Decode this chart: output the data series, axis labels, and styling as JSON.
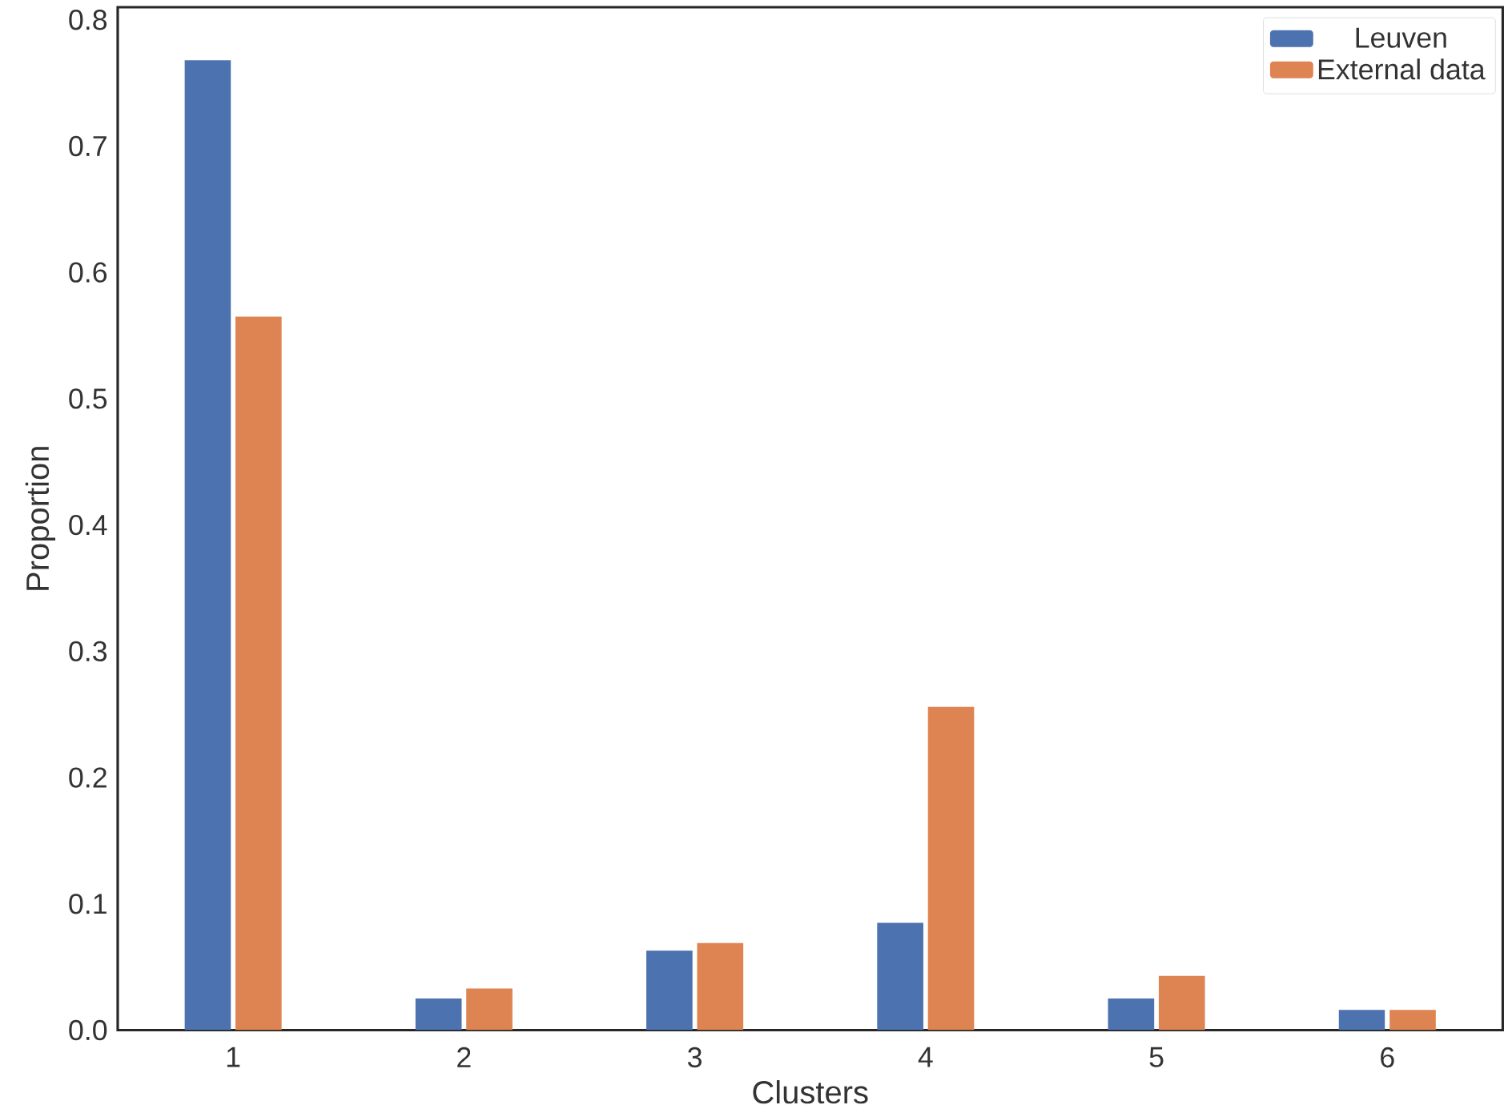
{
  "chart_data": {
    "type": "bar",
    "xlabel": "Clusters",
    "ylabel": "Proportion",
    "categories": [
      "1",
      "2",
      "3",
      "4",
      "5",
      "6"
    ],
    "series": [
      {
        "name": "Leuven",
        "color": "#4c72b0",
        "values": [
          0.768,
          0.025,
          0.063,
          0.085,
          0.025,
          0.016
        ]
      },
      {
        "name": "External data",
        "color": "#dd8452",
        "values": [
          0.565,
          0.033,
          0.069,
          0.256,
          0.043,
          0.016
        ]
      }
    ],
    "ylim": [
      0,
      0.81
    ],
    "yticks": [
      {
        "value": 0,
        "label": "0.0"
      },
      {
        "value": 0.1,
        "label": "0.1"
      },
      {
        "value": 0.2,
        "label": "0.2"
      },
      {
        "value": 0.3,
        "label": "0.3"
      },
      {
        "value": 0.4,
        "label": "0.4"
      },
      {
        "value": 0.5,
        "label": "0.5"
      },
      {
        "value": 0.6,
        "label": "0.6"
      },
      {
        "value": 0.7,
        "label": "0.7"
      },
      {
        "value": 0.8,
        "label": "0.8"
      }
    ],
    "legend": "top right",
    "grid": false
  }
}
